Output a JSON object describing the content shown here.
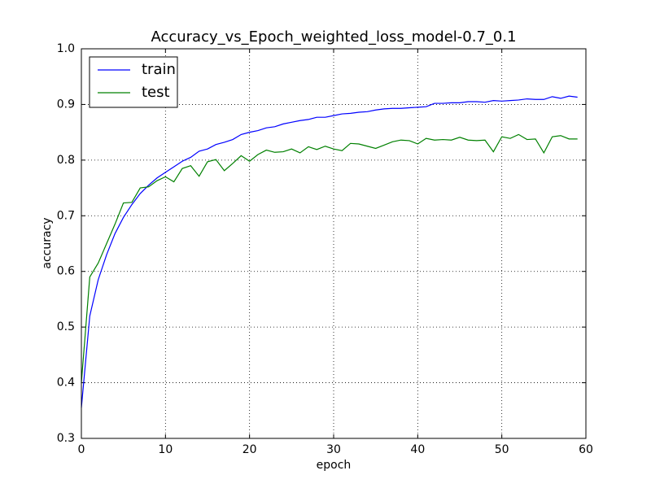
{
  "chart_data": {
    "type": "line",
    "title": "Accuracy_vs_Epoch_weighted_loss_model-0.7_0.1",
    "xlabel": "epoch",
    "ylabel": "accuracy",
    "x": [
      0,
      1,
      2,
      3,
      4,
      5,
      6,
      7,
      8,
      9,
      10,
      11,
      12,
      13,
      14,
      15,
      16,
      17,
      18,
      19,
      20,
      21,
      22,
      23,
      24,
      25,
      26,
      27,
      28,
      29,
      30,
      31,
      32,
      33,
      34,
      35,
      36,
      37,
      38,
      39,
      40,
      41,
      42,
      43,
      44,
      45,
      46,
      47,
      48,
      49,
      50,
      51,
      52,
      53,
      54,
      55,
      56,
      57,
      58,
      59
    ],
    "series": [
      {
        "name": "train",
        "color": "#0000ff",
        "values": [
          0.355,
          0.52,
          0.585,
          0.63,
          0.668,
          0.697,
          0.72,
          0.74,
          0.755,
          0.768,
          0.778,
          0.788,
          0.798,
          0.805,
          0.816,
          0.82,
          0.828,
          0.832,
          0.837,
          0.846,
          0.85,
          0.853,
          0.858,
          0.86,
          0.865,
          0.868,
          0.871,
          0.873,
          0.877,
          0.877,
          0.88,
          0.883,
          0.884,
          0.886,
          0.887,
          0.89,
          0.892,
          0.893,
          0.893,
          0.894,
          0.895,
          0.896,
          0.902,
          0.902,
          0.903,
          0.903,
          0.905,
          0.905,
          0.904,
          0.907,
          0.906,
          0.907,
          0.908,
          0.91,
          0.909,
          0.909,
          0.914,
          0.911,
          0.915,
          0.913
        ]
      },
      {
        "name": "test",
        "color": "#008000",
        "values": [
          0.4,
          0.59,
          0.615,
          0.65,
          0.685,
          0.723,
          0.724,
          0.75,
          0.752,
          0.763,
          0.77,
          0.761,
          0.785,
          0.79,
          0.771,
          0.797,
          0.801,
          0.781,
          0.794,
          0.808,
          0.798,
          0.81,
          0.818,
          0.814,
          0.815,
          0.82,
          0.813,
          0.824,
          0.819,
          0.825,
          0.82,
          0.817,
          0.83,
          0.829,
          0.825,
          0.821,
          0.827,
          0.833,
          0.836,
          0.835,
          0.829,
          0.839,
          0.836,
          0.837,
          0.836,
          0.841,
          0.836,
          0.835,
          0.836,
          0.815,
          0.842,
          0.839,
          0.846,
          0.837,
          0.838,
          0.813,
          0.842,
          0.844,
          0.838,
          0.838
        ]
      }
    ],
    "xlim": [
      0,
      60
    ],
    "xticks": [
      0,
      10,
      20,
      30,
      40,
      50,
      60
    ],
    "ylim": [
      0.3,
      1.0
    ],
    "yticks": [
      0.3,
      0.4,
      0.5,
      0.6,
      0.7,
      0.8,
      0.9,
      {
        "value": 1.0,
        "label": "1.0"
      }
    ],
    "grid": true,
    "legend": "upper-left"
  }
}
